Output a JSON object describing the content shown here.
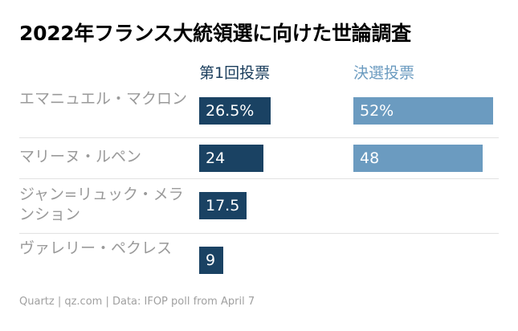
{
  "chart_data": {
    "type": "bar",
    "orientation": "horizontal",
    "title": "2022年フランス大統領選に向けた世論調査",
    "categories": [
      "エマニュエル・マクロン",
      "マリーヌ・ルペン",
      "ジャン=リュック・メランション",
      "ヴァレリー・ペクレス"
    ],
    "series": [
      {
        "name": "第1回投票",
        "values": [
          26.5,
          24,
          17.5,
          9
        ],
        "labels": [
          "26.5%",
          "24",
          "17.5",
          "9"
        ],
        "color": "#1a4263"
      },
      {
        "name": "決選投票",
        "values": [
          52,
          48,
          null,
          null
        ],
        "labels": [
          "52%",
          "48",
          null,
          null
        ],
        "color": "#6b9bc0"
      }
    ],
    "grid": false,
    "legend": "column headers"
  },
  "source": "Quartz | qz.com | Data: IFOP poll from April 7"
}
